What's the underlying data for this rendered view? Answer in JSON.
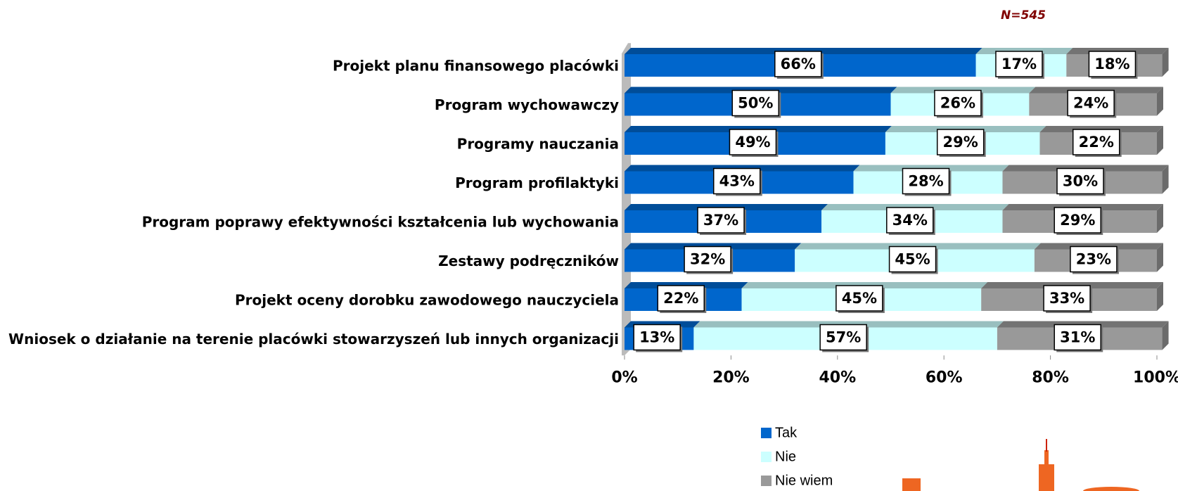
{
  "chart_data": {
    "type": "bar",
    "orientation": "horizontal",
    "stacked": true,
    "annotation": "N=545",
    "categories": [
      "Projekt planu finansowego placówki",
      "Program wychowawczy",
      "Programy nauczania",
      "Program profilaktyki",
      "Program poprawy efektywności kształcenia lub wychowania",
      "Zestawy podręczników",
      "Projekt oceny dorobku zawodowego nauczyciela",
      "Wniosek o działanie na terenie placówki stowarzyszeń lub innych organizacji"
    ],
    "series": [
      {
        "name": "Tak",
        "color": "#0066cc",
        "values": [
          66,
          50,
          49,
          43,
          37,
          32,
          22,
          13
        ],
        "value_labels": [
          "66%",
          "50%",
          "49%",
          "43%",
          "37%",
          "32%",
          "22%",
          "13%"
        ]
      },
      {
        "name": "Nie",
        "color": "#ccffff",
        "values": [
          17,
          26,
          29,
          28,
          34,
          45,
          45,
          57
        ],
        "value_labels": [
          "17%",
          "26%",
          "29%",
          "28%",
          "34%",
          "45%",
          "45%",
          "57%"
        ]
      },
      {
        "name": "Nie wiem",
        "color": "#999999",
        "values": [
          18,
          24,
          22,
          30,
          29,
          23,
          33,
          31
        ],
        "value_labels": [
          "18%",
          "24%",
          "22%",
          "30%",
          "29%",
          "23%",
          "33%",
          "31%"
        ]
      }
    ],
    "xlim": [
      0,
      100
    ],
    "xticks": [
      {
        "value": 0,
        "label": "0%"
      },
      {
        "value": 20,
        "label": "20%"
      },
      {
        "value": 40,
        "label": "40%"
      },
      {
        "value": 60,
        "label": "60%"
      },
      {
        "value": 80,
        "label": "80%"
      },
      {
        "value": 100,
        "label": "100%"
      }
    ]
  }
}
